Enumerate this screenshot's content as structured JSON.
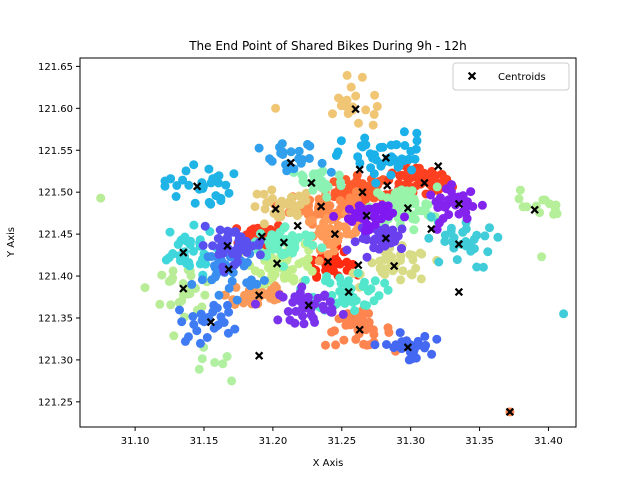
{
  "chart_data": {
    "type": "scatter",
    "title": "The End Point of Shared Bikes During 9h - 12h",
    "xlabel": "X Axis",
    "ylabel": "Y Axis",
    "xlim": [
      31.06,
      31.42
    ],
    "ylim": [
      121.22,
      121.66
    ],
    "xticks": [
      "31.10",
      "31.15",
      "31.20",
      "31.25",
      "31.30",
      "31.35",
      "31.40"
    ],
    "yticks": [
      "121.25",
      "121.30",
      "121.35",
      "121.40",
      "121.45",
      "121.50",
      "121.55",
      "121.60",
      "121.65"
    ],
    "grid": false,
    "legend": {
      "placement": "top-right",
      "entries": [
        "Centroids"
      ]
    },
    "centroid_color": "#000000",
    "clusters": [
      {
        "color": "#ff5a2c",
        "center": [
          31.265,
          121.5
        ],
        "spread": [
          0.01,
          0.01
        ],
        "count": 60
      },
      {
        "color": "#ff4020",
        "center": [
          31.305,
          121.512
        ],
        "spread": [
          0.012,
          0.01
        ],
        "count": 60
      },
      {
        "color": "#ff3a1e",
        "center": [
          31.192,
          121.447
        ],
        "spread": [
          0.008,
          0.009
        ],
        "count": 40
      },
      {
        "color": "#ff2a10",
        "center": [
          31.24,
          121.417
        ],
        "spread": [
          0.008,
          0.008
        ],
        "count": 40
      },
      {
        "color": "#ff8a4c",
        "center": [
          31.236,
          121.483
        ],
        "spread": [
          0.012,
          0.01
        ],
        "count": 50
      },
      {
        "color": "#ff9a58",
        "center": [
          31.244,
          121.452
        ],
        "spread": [
          0.01,
          0.01
        ],
        "count": 40
      },
      {
        "color": "#ff8550",
        "center": [
          31.262,
          121.336
        ],
        "spread": [
          0.012,
          0.01
        ],
        "count": 40
      },
      {
        "color": "#f99a5a",
        "center": [
          31.19,
          121.378
        ],
        "spread": [
          0.012,
          0.01
        ],
        "count": 35
      },
      {
        "color": "#f0c674",
        "center": [
          31.26,
          121.6
        ],
        "spread": [
          0.014,
          0.012
        ],
        "count": 18
      },
      {
        "color": "#e6cc7a",
        "center": [
          31.205,
          121.48
        ],
        "spread": [
          0.012,
          0.012
        ],
        "count": 30
      },
      {
        "color": "#d8dc86",
        "center": [
          31.29,
          121.412
        ],
        "spread": [
          0.012,
          0.01
        ],
        "count": 40
      },
      {
        "color": "#c2ee8c",
        "center": [
          31.21,
          121.415
        ],
        "spread": [
          0.012,
          0.012
        ],
        "count": 50
      },
      {
        "color": "#b8ec96",
        "center": [
          31.135,
          121.385
        ],
        "spread": [
          0.012,
          0.014
        ],
        "count": 28
      },
      {
        "color": "#b6ef9a",
        "center": [
          31.39,
          121.48
        ],
        "spread": [
          0.012,
          0.01
        ],
        "count": 14
      },
      {
        "color": "#b0f0a0",
        "center": [
          31.155,
          121.3
        ],
        "spread": [
          0.01,
          0.01
        ],
        "count": 6
      },
      {
        "color": "#98f4a8",
        "center": [
          31.295,
          121.482
        ],
        "spread": [
          0.012,
          0.012
        ],
        "count": 50
      },
      {
        "color": "#8cf2b4",
        "center": [
          31.232,
          121.512
        ],
        "spread": [
          0.01,
          0.01
        ],
        "count": 30
      },
      {
        "color": "#6af0c4",
        "center": [
          31.21,
          121.44
        ],
        "spread": [
          0.012,
          0.01
        ],
        "count": 50
      },
      {
        "color": "#52e6cc",
        "center": [
          31.255,
          121.382
        ],
        "spread": [
          0.012,
          0.012
        ],
        "count": 50
      },
      {
        "color": "#3fd6dc",
        "center": [
          31.135,
          121.428
        ],
        "spread": [
          0.012,
          0.014
        ],
        "count": 35
      },
      {
        "color": "#40ccd8",
        "center": [
          31.335,
          121.44
        ],
        "spread": [
          0.012,
          0.016
        ],
        "count": 30
      },
      {
        "color": "#20b4e6",
        "center": [
          31.145,
          121.508
        ],
        "spread": [
          0.012,
          0.014
        ],
        "count": 30
      },
      {
        "color": "#1ab0ea",
        "center": [
          31.282,
          121.542
        ],
        "spread": [
          0.016,
          0.014
        ],
        "count": 45
      },
      {
        "color": "#30a0ec",
        "center": [
          31.215,
          121.535
        ],
        "spread": [
          0.012,
          0.012
        ],
        "count": 25
      },
      {
        "color": "#3a8ef0",
        "center": [
          31.168,
          121.408
        ],
        "spread": [
          0.012,
          0.014
        ],
        "count": 35
      },
      {
        "color": "#3f7cf4",
        "center": [
          31.155,
          121.345
        ],
        "spread": [
          0.012,
          0.012
        ],
        "count": 25
      },
      {
        "color": "#4468f2",
        "center": [
          31.298,
          121.315
        ],
        "spread": [
          0.008,
          0.008
        ],
        "count": 30
      },
      {
        "color": "#5a50f0",
        "center": [
          31.17,
          121.437
        ],
        "spread": [
          0.012,
          0.01
        ],
        "count": 40
      },
      {
        "color": "#6a40ee",
        "center": [
          31.282,
          121.445
        ],
        "spread": [
          0.01,
          0.008
        ],
        "count": 45
      },
      {
        "color": "#7a32ec",
        "center": [
          31.225,
          121.365
        ],
        "spread": [
          0.01,
          0.01
        ],
        "count": 40
      },
      {
        "color": "#8422ee",
        "center": [
          31.332,
          121.485
        ],
        "spread": [
          0.01,
          0.01
        ],
        "count": 35
      },
      {
        "color": "#8018f2",
        "center": [
          31.268,
          121.473
        ],
        "spread": [
          0.01,
          0.008
        ],
        "count": 35
      }
    ],
    "centroids": [
      [
        31.26,
        121.599
      ],
      [
        31.282,
        121.541
      ],
      [
        31.32,
        121.531
      ],
      [
        31.213,
        121.535
      ],
      [
        31.263,
        121.527
      ],
      [
        31.145,
        121.507
      ],
      [
        31.228,
        121.511
      ],
      [
        31.283,
        121.508
      ],
      [
        31.31,
        121.511
      ],
      [
        31.265,
        121.5
      ],
      [
        31.335,
        121.486
      ],
      [
        31.235,
        121.483
      ],
      [
        31.298,
        121.481
      ],
      [
        31.202,
        121.48
      ],
      [
        31.39,
        121.479
      ],
      [
        31.268,
        121.472
      ],
      [
        31.218,
        121.46
      ],
      [
        31.315,
        121.456
      ],
      [
        31.245,
        121.45
      ],
      [
        31.192,
        121.447
      ],
      [
        31.282,
        121.445
      ],
      [
        31.208,
        121.44
      ],
      [
        31.335,
        121.438
      ],
      [
        31.167,
        121.436
      ],
      [
        31.135,
        121.428
      ],
      [
        31.24,
        121.417
      ],
      [
        31.262,
        121.413
      ],
      [
        31.203,
        121.415
      ],
      [
        31.288,
        121.412
      ],
      [
        31.168,
        121.408
      ],
      [
        31.135,
        121.385
      ],
      [
        31.255,
        121.381
      ],
      [
        31.335,
        121.381
      ],
      [
        31.19,
        121.377
      ],
      [
        31.226,
        121.365
      ],
      [
        31.155,
        121.345
      ],
      [
        31.263,
        121.336
      ],
      [
        31.298,
        121.315
      ],
      [
        31.19,
        121.305
      ],
      [
        31.372,
        121.238
      ]
    ],
    "outliers": [
      {
        "color": "#b8ec96",
        "x": 31.075,
        "y": 121.493
      },
      {
        "color": "#b0f0a0",
        "x": 31.17,
        "y": 121.275
      },
      {
        "color": "#f0c674",
        "x": 31.265,
        "y": 121.637
      },
      {
        "color": "#f0c674",
        "x": 31.202,
        "y": 121.6
      },
      {
        "color": "#40ccd8",
        "x": 31.411,
        "y": 121.355
      },
      {
        "color": "#ff8550",
        "x": 31.372,
        "y": 121.238
      },
      {
        "color": "#b6ef9a",
        "x": 31.405,
        "y": 121.48
      },
      {
        "color": "#b6ef9a",
        "x": 31.395,
        "y": 121.423
      }
    ]
  }
}
